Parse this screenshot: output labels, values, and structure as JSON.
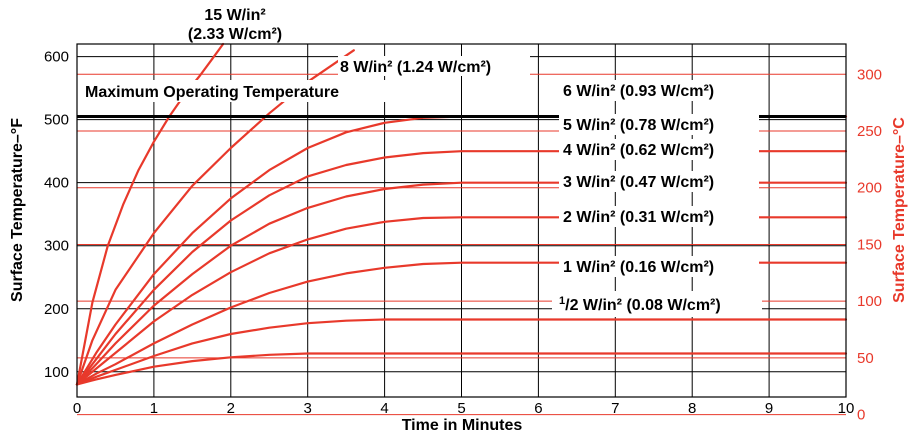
{
  "chart_data": {
    "type": "line",
    "title": "",
    "xlabel": "Time in Minutes",
    "ylabel_left": "Surface Temperature–°F",
    "ylabel_right": "Surface Temperature–°C",
    "xlim": [
      0,
      10
    ],
    "ylim_left": [
      60,
      620
    ],
    "ylim_right": [
      15.6,
      326.7
    ],
    "x_ticks": [
      "0",
      "1",
      "2",
      "3",
      "4",
      "5",
      "6",
      "7",
      "8",
      "9",
      "10"
    ],
    "y_ticks_left": [
      "100",
      "200",
      "300",
      "400",
      "500",
      "600"
    ],
    "y_ticks_right": [
      "0",
      "50",
      "100",
      "150",
      "200",
      "250",
      "300"
    ],
    "grid": true,
    "colors": {
      "curves": "#e8392b",
      "celsius": "#e8392b",
      "fahrenheit": "#000000"
    },
    "max_operating_temperature": {
      "label": "Maximum Operating Temperature",
      "value_f": 505
    },
    "series": [
      {
        "name": "15 W/in² (2.33 W/cm²)",
        "label_lines": [
          "15 W/in²",
          "(2.33 W/cm²)"
        ],
        "points": [
          [
            0,
            80
          ],
          [
            0.2,
            210
          ],
          [
            0.4,
            300
          ],
          [
            0.6,
            365
          ],
          [
            0.8,
            420
          ],
          [
            1.0,
            465
          ],
          [
            1.2,
            505
          ],
          [
            1.4,
            540
          ],
          [
            1.6,
            570
          ],
          [
            1.75,
            595
          ],
          [
            1.9,
            620
          ]
        ]
      },
      {
        "name": "8 W/in² (1.24 W/cm²)",
        "points": [
          [
            0,
            80
          ],
          [
            0.2,
            150
          ],
          [
            0.5,
            230
          ],
          [
            1.0,
            320
          ],
          [
            1.5,
            395
          ],
          [
            2.0,
            455
          ],
          [
            2.5,
            510
          ],
          [
            3.0,
            560
          ],
          [
            3.6,
            610
          ]
        ]
      },
      {
        "name": "6 W/in² (0.93 W/cm²)",
        "points": [
          [
            0,
            80
          ],
          [
            0.25,
            130
          ],
          [
            0.5,
            175
          ],
          [
            1.0,
            255
          ],
          [
            1.5,
            320
          ],
          [
            2.0,
            375
          ],
          [
            2.5,
            420
          ],
          [
            3.0,
            455
          ],
          [
            3.5,
            480
          ],
          [
            4.0,
            495
          ],
          [
            4.5,
            503
          ],
          [
            5.0,
            505
          ],
          [
            10,
            505
          ]
        ]
      },
      {
        "name": "5 W/in² (0.78 W/cm²)",
        "points": [
          [
            0,
            80
          ],
          [
            0.25,
            120
          ],
          [
            0.5,
            160
          ],
          [
            1.0,
            230
          ],
          [
            1.5,
            290
          ],
          [
            2.0,
            340
          ],
          [
            2.5,
            380
          ],
          [
            3.0,
            410
          ],
          [
            3.5,
            428
          ],
          [
            4.0,
            440
          ],
          [
            4.5,
            447
          ],
          [
            5.0,
            450
          ],
          [
            10,
            450
          ]
        ]
      },
      {
        "name": "4 W/in² (0.62 W/cm²)",
        "points": [
          [
            0,
            80
          ],
          [
            0.25,
            112
          ],
          [
            0.5,
            145
          ],
          [
            1.0,
            205
          ],
          [
            1.5,
            255
          ],
          [
            2.0,
            300
          ],
          [
            2.5,
            335
          ],
          [
            3.0,
            360
          ],
          [
            3.5,
            378
          ],
          [
            4.0,
            390
          ],
          [
            4.5,
            397
          ],
          [
            5.0,
            400
          ],
          [
            10,
            400
          ]
        ]
      },
      {
        "name": "3 W/in² (0.47 W/cm²)",
        "points": [
          [
            0,
            80
          ],
          [
            0.25,
            105
          ],
          [
            0.5,
            130
          ],
          [
            1.0,
            180
          ],
          [
            1.5,
            222
          ],
          [
            2.0,
            258
          ],
          [
            2.5,
            288
          ],
          [
            3.0,
            310
          ],
          [
            3.5,
            327
          ],
          [
            4.0,
            338
          ],
          [
            4.5,
            344
          ],
          [
            5.0,
            345
          ],
          [
            10,
            345
          ]
        ]
      },
      {
        "name": "2 W/in² (0.31 W/cm²)",
        "points": [
          [
            0,
            80
          ],
          [
            0.25,
            97
          ],
          [
            0.5,
            112
          ],
          [
            1.0,
            145
          ],
          [
            1.5,
            175
          ],
          [
            2.0,
            202
          ],
          [
            2.5,
            225
          ],
          [
            3.0,
            243
          ],
          [
            3.5,
            256
          ],
          [
            4.0,
            265
          ],
          [
            4.5,
            271
          ],
          [
            5.0,
            273
          ],
          [
            10,
            273
          ]
        ]
      },
      {
        "name": "1 W/in² (0.16 W/cm²)",
        "points": [
          [
            0,
            80
          ],
          [
            0.25,
            92
          ],
          [
            0.5,
            103
          ],
          [
            1.0,
            125
          ],
          [
            1.5,
            145
          ],
          [
            2.0,
            160
          ],
          [
            2.5,
            170
          ],
          [
            3.0,
            177
          ],
          [
            3.5,
            181
          ],
          [
            4.0,
            183
          ],
          [
            10,
            183
          ]
        ]
      },
      {
        "name": "½ W/in² (0.08 W/cm²)",
        "label_prefix": "1",
        "label_suffix": "/2 W/in² (0.08 W/cm²)",
        "points": [
          [
            0,
            80
          ],
          [
            0.25,
            88
          ],
          [
            0.5,
            95
          ],
          [
            1.0,
            108
          ],
          [
            1.5,
            117
          ],
          [
            2.0,
            123
          ],
          [
            2.5,
            127
          ],
          [
            3.0,
            129
          ],
          [
            10,
            129
          ]
        ]
      }
    ]
  }
}
